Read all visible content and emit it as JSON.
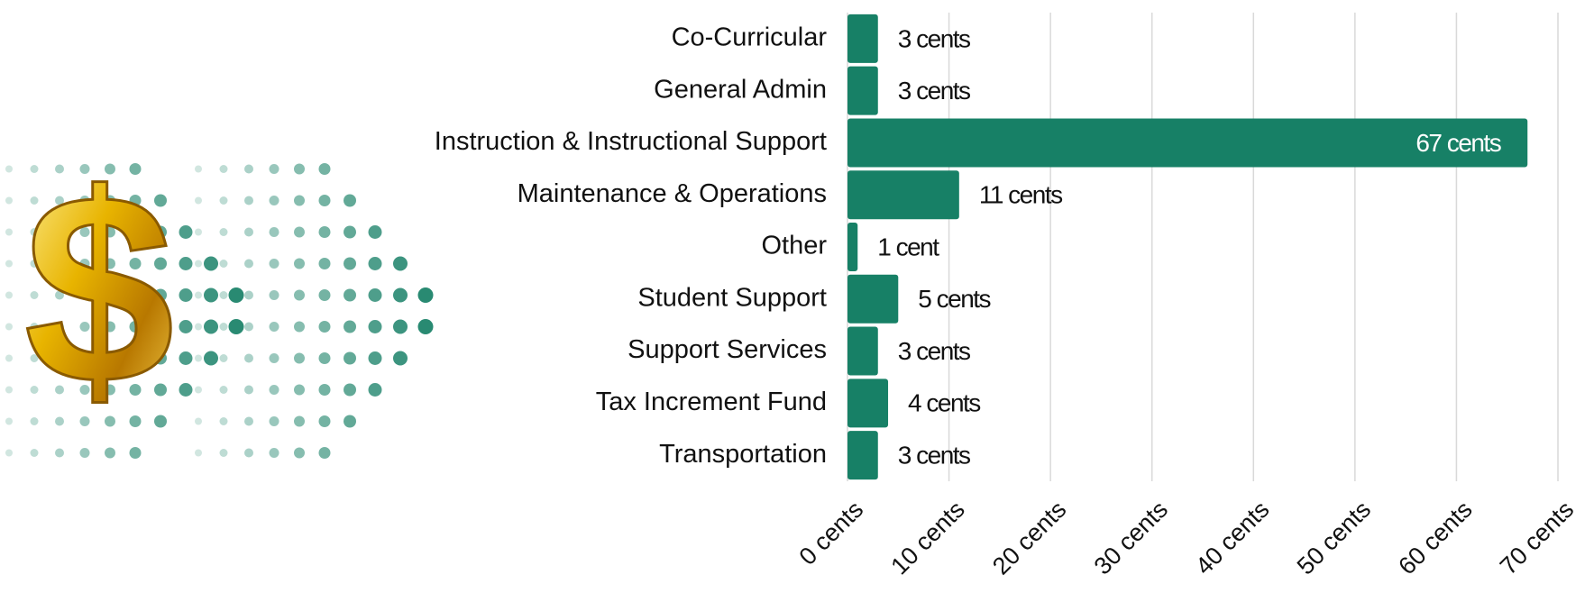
{
  "chart_data": {
    "type": "bar",
    "orientation": "horizontal",
    "categories": [
      "Co-Curricular",
      "General Admin",
      "Instruction & Instructional Support",
      "Maintenance & Operations",
      "Other",
      "Student Support",
      "Support Services",
      "Tax Increment Fund",
      "Transportation"
    ],
    "values": [
      3,
      3,
      67,
      11,
      1,
      5,
      3,
      4,
      3
    ],
    "value_labels": [
      "3 cents",
      "3 cents",
      "67 cents",
      "11 cents",
      "1 cent",
      "5 cents",
      "3 cents",
      "4 cents",
      "3 cents"
    ],
    "color": "#178066",
    "xlim": [
      0,
      70
    ],
    "xticks": [
      {
        "value": 0,
        "label": "0 cents"
      },
      {
        "value": 10,
        "label": "10 cents"
      },
      {
        "value": 20,
        "label": "20 cents"
      },
      {
        "value": 30,
        "label": "30 cents"
      },
      {
        "value": 40,
        "label": "40 cents"
      },
      {
        "value": 50,
        "label": "50 cents"
      },
      {
        "value": 60,
        "label": "60 cents"
      },
      {
        "value": 70,
        "label": "70 cents"
      }
    ],
    "grid": true
  }
}
